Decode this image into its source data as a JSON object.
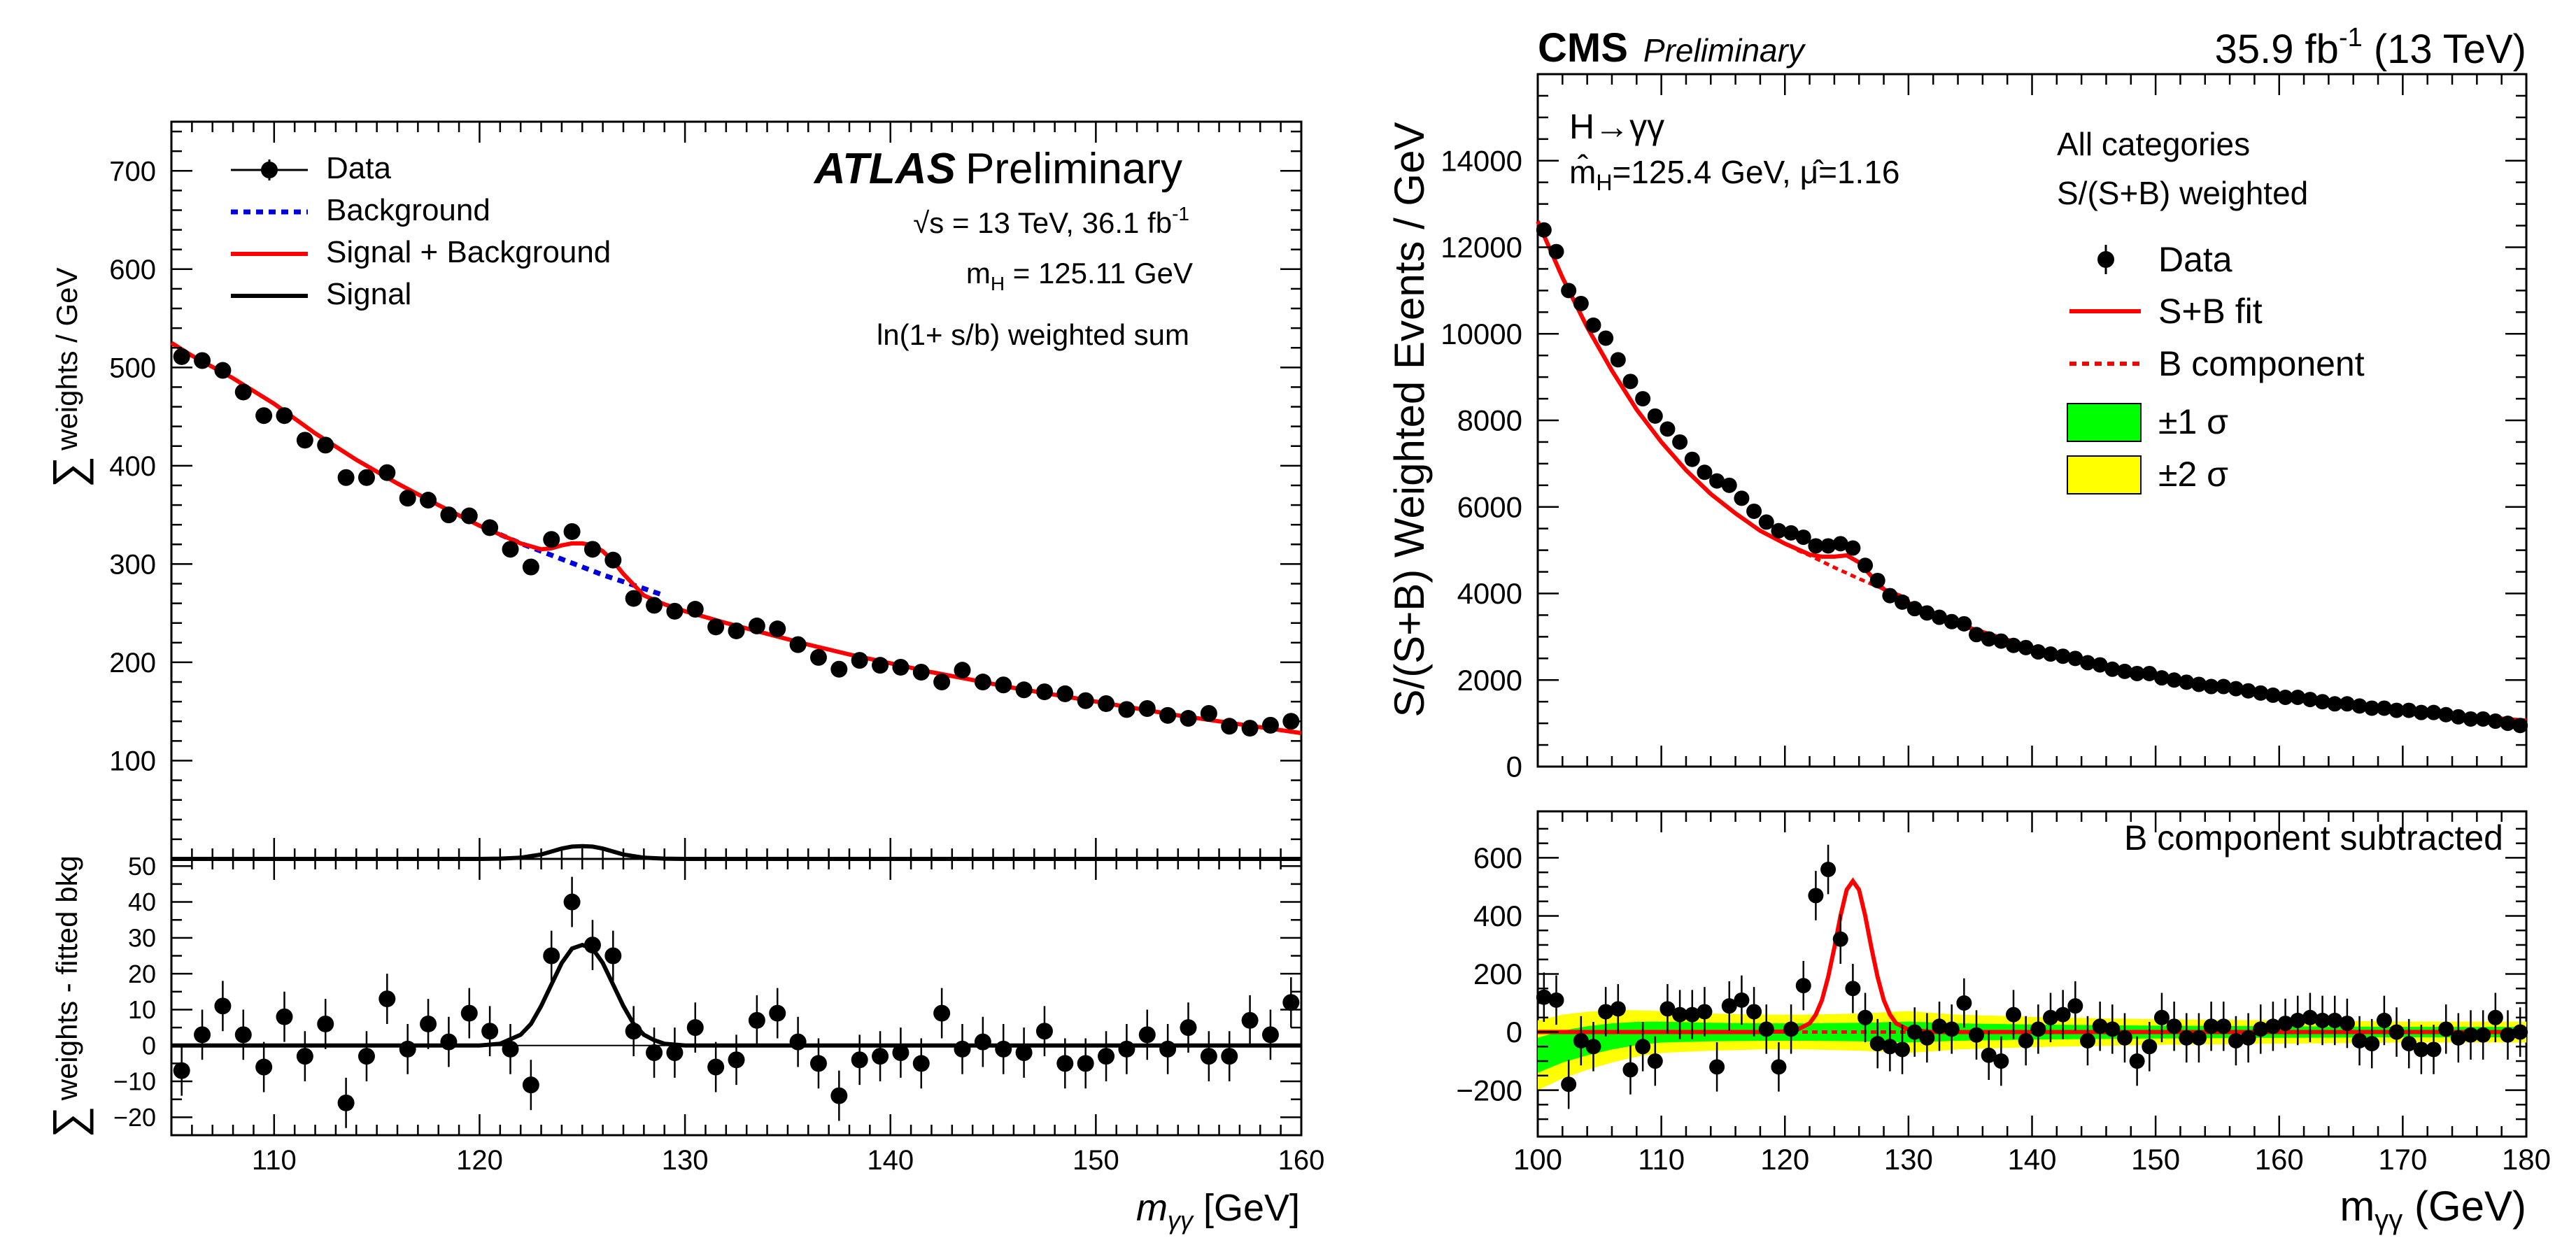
{
  "chart_data": [
    {
      "type": "scatter",
      "experiment": "ATLAS",
      "label_bold": "ATLAS",
      "label_rest": "Preliminary",
      "info": {
        "sqrt_s": "√s = 13 TeV, 36.1 fb",
        "sqrt_s_sup": "-1",
        "mass_m": "m",
        "mass_sub": "H",
        "mass_rest": " = 125.11 GeV",
        "weighting": "ln(1+ s/b) weighted sum"
      },
      "legend": {
        "data": "Data",
        "background": "Background",
        "sb": "Signal + Background",
        "signal": "Signal"
      },
      "colors": {
        "sb": "#ff0000",
        "background": "#0000dd",
        "signal": "#000000",
        "data": "#000000"
      },
      "xlim": [
        105,
        160
      ],
      "xticks": [
        110,
        120,
        130,
        140,
        150,
        160
      ],
      "xlabel_m": "m",
      "xlabel_sub": "γγ",
      "xlabel_unit": " [GeV]",
      "main": {
        "ylim": [
          0,
          750
        ],
        "yticks": [
          100,
          200,
          300,
          400,
          500,
          600,
          700
        ],
        "ylabel_sigma": "∑",
        "ylabel": "weights / GeV",
        "x": [
          105.5,
          106.5,
          107.5,
          108.5,
          109.5,
          110.5,
          111.5,
          112.5,
          113.5,
          114.5,
          115.5,
          116.5,
          117.5,
          118.5,
          119.5,
          120.5,
          121.5,
          122.5,
          123.5,
          124.5,
          125.5,
          126.5,
          127.5,
          128.5,
          129.5,
          130.5,
          131.5,
          132.5,
          133.5,
          134.5,
          135.5,
          136.5,
          137.5,
          138.5,
          139.5,
          140.5,
          141.5,
          142.5,
          143.5,
          144.5,
          145.5,
          146.5,
          147.5,
          148.5,
          149.5,
          150.5,
          151.5,
          152.5,
          153.5,
          154.5,
          155.5,
          156.5,
          157.5,
          158.5,
          159.5
        ],
        "y": [
          511,
          507,
          497,
          475,
          451,
          451,
          426,
          421,
          388,
          388,
          393,
          367,
          365,
          350,
          349,
          337,
          315,
          297,
          325,
          333,
          315,
          304,
          265,
          258,
          252,
          254,
          236,
          232,
          237,
          234,
          218,
          205,
          193,
          202,
          197,
          195,
          190,
          180,
          192,
          180,
          177,
          172,
          170,
          168,
          161,
          158,
          152,
          153,
          146,
          143,
          148,
          135,
          133,
          136,
          140
        ],
        "err": 7,
        "sb_x": [
          105,
          106,
          108,
          110,
          112,
          114,
          116,
          118,
          120,
          121,
          122,
          123,
          123.5,
          124,
          124.5,
          125,
          125.5,
          126,
          126.5,
          127,
          128,
          129,
          130,
          132,
          134,
          136,
          138,
          140,
          142,
          144,
          146,
          148,
          150,
          152,
          154,
          156,
          158,
          160
        ],
        "sb_y": [
          525,
          512,
          489,
          463,
          433,
          406,
          382,
          360,
          339,
          330,
          321,
          315,
          316,
          319,
          321,
          321,
          319,
          313,
          303,
          290,
          268,
          259,
          252,
          240,
          229,
          218,
          208,
          199,
          190,
          182,
          174,
          167,
          160,
          153,
          146,
          140,
          134,
          128
        ],
        "bkg_x": [
          121,
          122,
          123,
          124,
          125,
          126,
          127,
          128,
          129
        ],
        "bkg_y": [
          330,
          321,
          313,
          305,
          297,
          289,
          282,
          275,
          268
        ],
        "signal_x": [
          105,
          120,
          121,
          122,
          123,
          124,
          124.5,
          125,
          125.5,
          126,
          127,
          128,
          129,
          130,
          160
        ],
        "signal_y": [
          0,
          0,
          0.3,
          1.2,
          4.5,
          10.5,
          12.5,
          13,
          12.5,
          10.5,
          4.5,
          1.2,
          0.3,
          0,
          0
        ]
      },
      "ratio": {
        "ylim": [
          -25,
          52
        ],
        "yticks": [
          -20,
          -10,
          0,
          10,
          20,
          30,
          40,
          50
        ],
        "ylabel_sigma": "∑",
        "ylabel": "weights - fitted bkg",
        "x": [
          105.5,
          106.5,
          107.5,
          108.5,
          109.5,
          110.5,
          111.5,
          112.5,
          113.5,
          114.5,
          115.5,
          116.5,
          117.5,
          118.5,
          119.5,
          120.5,
          121.5,
          122.5,
          123.5,
          124.5,
          125.5,
          126.5,
          127.5,
          128.5,
          129.5,
          130.5,
          131.5,
          132.5,
          133.5,
          134.5,
          135.5,
          136.5,
          137.5,
          138.5,
          139.5,
          140.5,
          141.5,
          142.5,
          143.5,
          144.5,
          145.5,
          146.5,
          147.5,
          148.5,
          149.5,
          150.5,
          151.5,
          152.5,
          153.5,
          154.5,
          155.5,
          156.5,
          157.5,
          158.5,
          159.5
        ],
        "y": [
          -7,
          3,
          11,
          3,
          -6,
          8,
          -3,
          6,
          -16,
          -3,
          13,
          -1,
          6,
          1,
          9,
          4,
          -1,
          -11,
          25,
          40,
          28,
          25,
          4,
          -2,
          -2,
          5,
          -6,
          -4,
          7,
          9,
          1,
          -5,
          -14,
          -4,
          -3,
          -2,
          -5,
          9,
          -1,
          1,
          -1,
          -2,
          4,
          -5,
          -5,
          -3,
          -1,
          3,
          -1,
          5,
          -3,
          -3,
          7,
          3,
          12
        ],
        "err": 7,
        "fit_x": [
          105,
          120,
          121,
          122,
          122.5,
          123,
          123.5,
          124,
          124.5,
          125,
          125.5,
          126,
          126.5,
          127,
          127.5,
          128,
          128.5,
          129,
          130,
          160
        ],
        "fit_y": [
          0,
          0,
          0.5,
          3,
          6,
          11,
          17,
          23,
          27,
          28,
          27,
          23,
          17,
          11,
          6,
          3,
          1.5,
          0.5,
          0,
          0
        ]
      }
    },
    {
      "type": "scatter",
      "experiment": "CMS",
      "label_bold": "CMS",
      "label_rest": "Preliminary",
      "lumi_main": "35.9 fb",
      "lumi_sup": "-1",
      "lumi_energy": " (13 TeV)",
      "process": "H→γγ",
      "fit_text": "m̂",
      "fit_sub": "H",
      "fit_rest": "=125.4 GeV, μ̂=1.16",
      "categories_1": "All categories",
      "categories_2": "S/(S+B) weighted",
      "legend": {
        "data": "Data",
        "sb": "S+B fit",
        "b": "B component",
        "one_sigma": "±1 σ",
        "two_sigma": "±2 σ"
      },
      "colors": {
        "sb": "#ff0000",
        "b": "#ff0000",
        "one_sigma": "#00ff00",
        "two_sigma": "#ffff00",
        "data": "#000000"
      },
      "xlim": [
        100,
        180
      ],
      "xticks": [
        100,
        110,
        120,
        130,
        140,
        150,
        160,
        170,
        180
      ],
      "xlabel_m": "m",
      "xlabel_sub": "γγ",
      "xlabel_unit": " (GeV)",
      "main": {
        "ylim": [
          0,
          16000
        ],
        "yticks": [
          0,
          2000,
          4000,
          6000,
          8000,
          10000,
          12000,
          14000
        ],
        "ylabel": "S/(S+B) Weighted Events / GeV",
        "x": [
          100.5,
          101.5,
          102.5,
          103.5,
          104.5,
          105.5,
          106.5,
          107.5,
          108.5,
          109.5,
          110.5,
          111.5,
          112.5,
          113.5,
          114.5,
          115.5,
          116.5,
          117.5,
          118.5,
          119.5,
          120.5,
          121.5,
          122.5,
          123.5,
          124.5,
          125.5,
          126.5,
          127.5,
          128.5,
          129.5,
          130.5,
          131.5,
          132.5,
          133.5,
          134.5,
          135.5,
          136.5,
          137.5,
          138.5,
          139.5,
          140.5,
          141.5,
          142.5,
          143.5,
          144.5,
          145.5,
          146.5,
          147.5,
          148.5,
          149.5,
          150.5,
          151.5,
          152.5,
          153.5,
          154.5,
          155.5,
          156.5,
          157.5,
          158.5,
          159.5,
          160.5,
          161.5,
          162.5,
          163.5,
          164.5,
          165.5,
          166.5,
          167.5,
          168.5,
          169.5,
          170.5,
          171.5,
          172.5,
          173.5,
          174.5,
          175.5,
          176.5,
          177.5,
          178.5,
          179.5
        ],
        "y": [
          12400,
          11900,
          11000,
          10700,
          10200,
          9900,
          9400,
          8900,
          8500,
          8100,
          7800,
          7500,
          7100,
          6800,
          6600,
          6500,
          6200,
          5900,
          5650,
          5450,
          5400,
          5300,
          5100,
          5100,
          5150,
          5050,
          4650,
          4300,
          3950,
          3800,
          3650,
          3550,
          3450,
          3350,
          3300,
          3050,
          2950,
          2900,
          2800,
          2750,
          2650,
          2600,
          2550,
          2500,
          2400,
          2350,
          2250,
          2200,
          2150,
          2150,
          2050,
          2000,
          1950,
          1900,
          1850,
          1850,
          1800,
          1750,
          1700,
          1650,
          1600,
          1600,
          1550,
          1500,
          1450,
          1450,
          1400,
          1350,
          1350,
          1300,
          1300,
          1250,
          1250,
          1200,
          1150,
          1100,
          1100,
          1050,
          1000,
          950
        ],
        "sb_x": [
          100,
          102,
          104,
          106,
          108,
          110,
          112,
          114,
          116,
          118,
          120,
          122,
          123,
          124,
          125,
          126,
          127,
          128,
          130,
          132,
          135,
          140,
          145,
          150,
          155,
          160,
          165,
          170,
          175,
          180
        ],
        "sb_y": [
          12600,
          11300,
          10150,
          9150,
          8250,
          7500,
          6850,
          6300,
          5850,
          5450,
          5150,
          4900,
          4850,
          4850,
          4880,
          4720,
          4400,
          4100,
          3780,
          3550,
          3200,
          2750,
          2400,
          2120,
          1870,
          1660,
          1480,
          1320,
          1180,
          1060
        ],
        "b_x": [
          121,
          122,
          123,
          124,
          125,
          126,
          127,
          128,
          129,
          130
        ],
        "b_y": [
          5000,
          4880,
          4740,
          4600,
          4470,
          4340,
          4220,
          4100,
          3990,
          3880
        ]
      },
      "ratio": {
        "ylim": [
          -360,
          760
        ],
        "yticks": [
          -200,
          0,
          200,
          400,
          600
        ],
        "x": [
          100.5,
          101.5,
          102.5,
          103.5,
          104.5,
          105.5,
          106.5,
          107.5,
          108.5,
          109.5,
          110.5,
          111.5,
          112.5,
          113.5,
          114.5,
          115.5,
          116.5,
          117.5,
          118.5,
          119.5,
          120.5,
          121.5,
          122.5,
          123.5,
          124.5,
          125.5,
          126.5,
          127.5,
          128.5,
          129.5,
          130.5,
          131.5,
          132.5,
          133.5,
          134.5,
          135.5,
          136.5,
          137.5,
          138.5,
          139.5,
          140.5,
          141.5,
          142.5,
          143.5,
          144.5,
          145.5,
          146.5,
          147.5,
          148.5,
          149.5,
          150.5,
          151.5,
          152.5,
          153.5,
          154.5,
          155.5,
          156.5,
          157.5,
          158.5,
          159.5,
          160.5,
          161.5,
          162.5,
          163.5,
          164.5,
          165.5,
          166.5,
          167.5,
          168.5,
          169.5,
          170.5,
          171.5,
          172.5,
          173.5,
          174.5,
          175.5,
          176.5,
          177.5,
          178.5,
          179.5
        ],
        "y": [
          120,
          110,
          -180,
          -30,
          -50,
          70,
          80,
          -130,
          -50,
          -100,
          80,
          60,
          60,
          70,
          -120,
          90,
          110,
          70,
          10,
          -120,
          10,
          160,
          470,
          560,
          320,
          150,
          50,
          -40,
          -50,
          -60,
          0,
          -20,
          20,
          10,
          100,
          -10,
          -80,
          -100,
          60,
          -30,
          10,
          50,
          60,
          90,
          -30,
          20,
          10,
          -20,
          -100,
          -50,
          50,
          20,
          -20,
          -20,
          20,
          20,
          -30,
          -20,
          10,
          20,
          30,
          40,
          50,
          40,
          40,
          30,
          -30,
          -40,
          40,
          0,
          -40,
          -60,
          -60,
          10,
          -20,
          -10,
          -10,
          50,
          -10,
          0
        ],
        "err": 85,
        "fit_x": [
          100,
          118,
          120,
          121,
          122,
          122.5,
          123,
          123.5,
          124,
          124.5,
          125,
          125.5,
          126,
          126.5,
          127,
          127.5,
          128,
          128.5,
          129,
          130,
          132,
          180
        ],
        "fit_y": [
          0,
          0,
          2,
          8,
          30,
          60,
          110,
          190,
          290,
          400,
          490,
          520,
          490,
          400,
          290,
          190,
          110,
          60,
          30,
          8,
          0,
          0
        ],
        "band1_x": [
          100,
          102,
          104,
          106,
          108,
          110,
          114,
          118,
          122,
          126,
          130,
          134,
          140,
          145,
          150,
          160,
          170,
          180
        ],
        "band1_hw": [
          60,
          55,
          50,
          45,
          40,
          36,
          32,
          30,
          30,
          32,
          36,
          30,
          26,
          24,
          22,
          20,
          18,
          18
        ],
        "band1_off": [
          -80,
          -50,
          -30,
          -15,
          -5,
          0,
          0,
          0,
          0,
          0,
          0,
          0,
          0,
          0,
          0,
          0,
          0,
          0
        ],
        "band2_x": [
          100,
          102,
          104,
          106,
          108,
          110,
          114,
          118,
          122,
          126,
          130,
          134,
          140,
          145,
          150,
          160,
          170,
          180
        ],
        "band2_hw": [
          120,
          110,
          100,
          90,
          80,
          72,
          64,
          60,
          60,
          64,
          72,
          60,
          52,
          48,
          44,
          40,
          36,
          36
        ],
        "band2_off": [
          -80,
          -50,
          -30,
          -15,
          -5,
          0,
          0,
          0,
          0,
          0,
          0,
          0,
          0,
          0,
          0,
          0,
          0,
          0
        ]
      },
      "ratio_title": "B component subtracted"
    }
  ]
}
